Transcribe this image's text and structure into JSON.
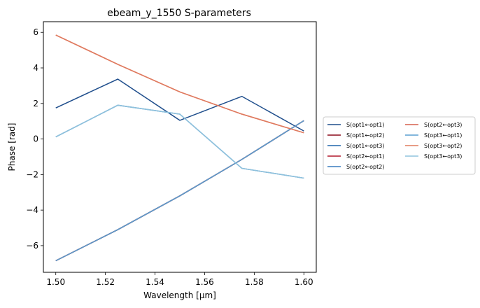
{
  "chart_data": {
    "type": "line",
    "title": "ebeam_y_1550 S-parameters",
    "xlabel": "Wavelength [µm]",
    "ylabel": "Phase [rad]",
    "xlim": [
      1.495,
      1.605
    ],
    "ylim": [
      -7.5,
      6.6
    ],
    "xticks": [
      "1.50",
      "1.52",
      "1.54",
      "1.56",
      "1.58",
      "1.60"
    ],
    "xtick_values": [
      1.5,
      1.52,
      1.54,
      1.56,
      1.58,
      1.6
    ],
    "yticks": [
      "−6",
      "−4",
      "−2",
      "0",
      "2",
      "4",
      "6"
    ],
    "ytick_values": [
      -6,
      -4,
      -2,
      0,
      2,
      4,
      6
    ],
    "grid": false,
    "legend_position": "outside-right",
    "x": [
      1.5,
      1.525,
      1.55,
      1.575,
      1.6
    ],
    "series": [
      {
        "name": "S(opt1←opt1)",
        "color": "#1f4e8c",
        "values": [
          1.75,
          3.37,
          1.05,
          2.4,
          0.45
        ]
      },
      {
        "name": "S(opt1←opt2)",
        "color": "#8b0a1a",
        "values": [
          -6.85,
          -5.1,
          -3.2,
          -1.15,
          1.03
        ]
      },
      {
        "name": "S(opt1←opt3)",
        "color": "#2166ac",
        "values": [
          -6.85,
          -5.1,
          -3.2,
          -1.15,
          1.03
        ]
      },
      {
        "name": "S(opt2←opt1)",
        "color": "#b2182b",
        "values": [
          -6.85,
          -5.1,
          -3.2,
          -1.15,
          1.03
        ]
      },
      {
        "name": "S(opt2←opt2)",
        "color": "#3a7bbf",
        "values": [
          0.12,
          1.9,
          1.4,
          -1.65,
          -2.2
        ]
      },
      {
        "name": "S(opt2←opt3)",
        "color": "#d6604d",
        "values": [
          5.85,
          4.2,
          2.65,
          1.4,
          0.35
        ]
      },
      {
        "name": "S(opt3←opt1)",
        "color": "#5a9fd0",
        "values": [
          -6.85,
          -5.1,
          -3.2,
          -1.15,
          1.03
        ]
      },
      {
        "name": "S(opt3←opt2)",
        "color": "#e07b5f",
        "values": [
          5.85,
          4.2,
          2.65,
          1.4,
          0.35
        ]
      },
      {
        "name": "S(opt3←opt3)",
        "color": "#8fc3dd",
        "values": [
          0.12,
          1.9,
          1.4,
          -1.65,
          -2.2
        ]
      }
    ]
  }
}
